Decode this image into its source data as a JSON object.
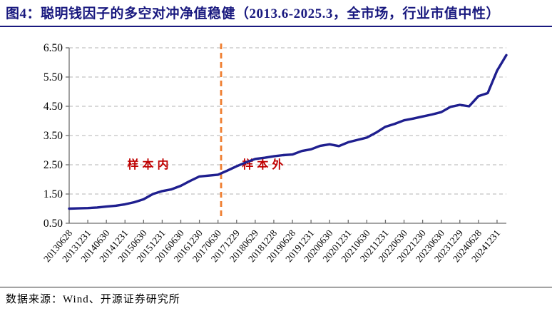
{
  "title": "图4：聪明钱因子的多空对冲净值稳健（2013.6-2025.3，全市场，行业市值中性）",
  "footer": "数据来源：Wind、开源证券研究所",
  "colors": {
    "title": "#19197f",
    "title_rule": "#19197f",
    "line": "#1f1f8f",
    "split_line": "#ef7d2e",
    "annotation": "#c00000",
    "grid": "#b3b3b3",
    "axis": "#6e6e6e",
    "tick_text": "#000000",
    "footer_rule": "#333333"
  },
  "chart_data": {
    "type": "line",
    "title": "",
    "xlabel": "",
    "ylabel": "",
    "legend": "none",
    "grid": "horizontal-dashed",
    "ylim": [
      0.5,
      6.5
    ],
    "ytick_labels": [
      "0.50",
      "1.50",
      "2.50",
      "3.50",
      "4.50",
      "5.50",
      "6.50"
    ],
    "ytick_values": [
      0.5,
      1.5,
      2.5,
      3.5,
      4.5,
      5.5,
      6.5
    ],
    "x_tick_labels": [
      "20130628",
      "20131231",
      "20140630",
      "20141231",
      "20150630",
      "20151231",
      "20160630",
      "20161230",
      "20170630",
      "20171229",
      "20180629",
      "20181228",
      "20190628",
      "20191231",
      "20200630",
      "20201231",
      "20210630",
      "20211231",
      "20220630",
      "20221230",
      "20230630",
      "20231229",
      "20240628",
      "20241231"
    ],
    "x_axis_total_months": 141,
    "x_tick_month_step": 6,
    "series": [
      {
        "name": "聪明钱因子多空对冲净值",
        "sampling": "quarterly",
        "x_month_start": 0,
        "x_month_step": 3,
        "values": [
          1.0,
          1.01,
          1.02,
          1.04,
          1.07,
          1.1,
          1.15,
          1.22,
          1.32,
          1.5,
          1.6,
          1.66,
          1.78,
          1.95,
          2.1,
          2.13,
          2.16,
          2.3,
          2.45,
          2.58,
          2.7,
          2.74,
          2.79,
          2.83,
          2.85,
          2.97,
          3.03,
          3.15,
          3.2,
          3.14,
          3.27,
          3.35,
          3.43,
          3.6,
          3.8,
          3.9,
          4.02,
          4.08,
          4.15,
          4.22,
          4.3,
          4.48,
          4.55,
          4.5,
          4.85,
          4.95,
          5.72,
          6.25
        ]
      }
    ],
    "split_line": {
      "x_month": 49,
      "style": "dashed-vertical"
    },
    "annotations": [
      {
        "text": "样本内",
        "x_month": 26,
        "y_value": 2.5
      },
      {
        "text": "样本外",
        "x_month": 63,
        "y_value": 2.5
      }
    ]
  }
}
